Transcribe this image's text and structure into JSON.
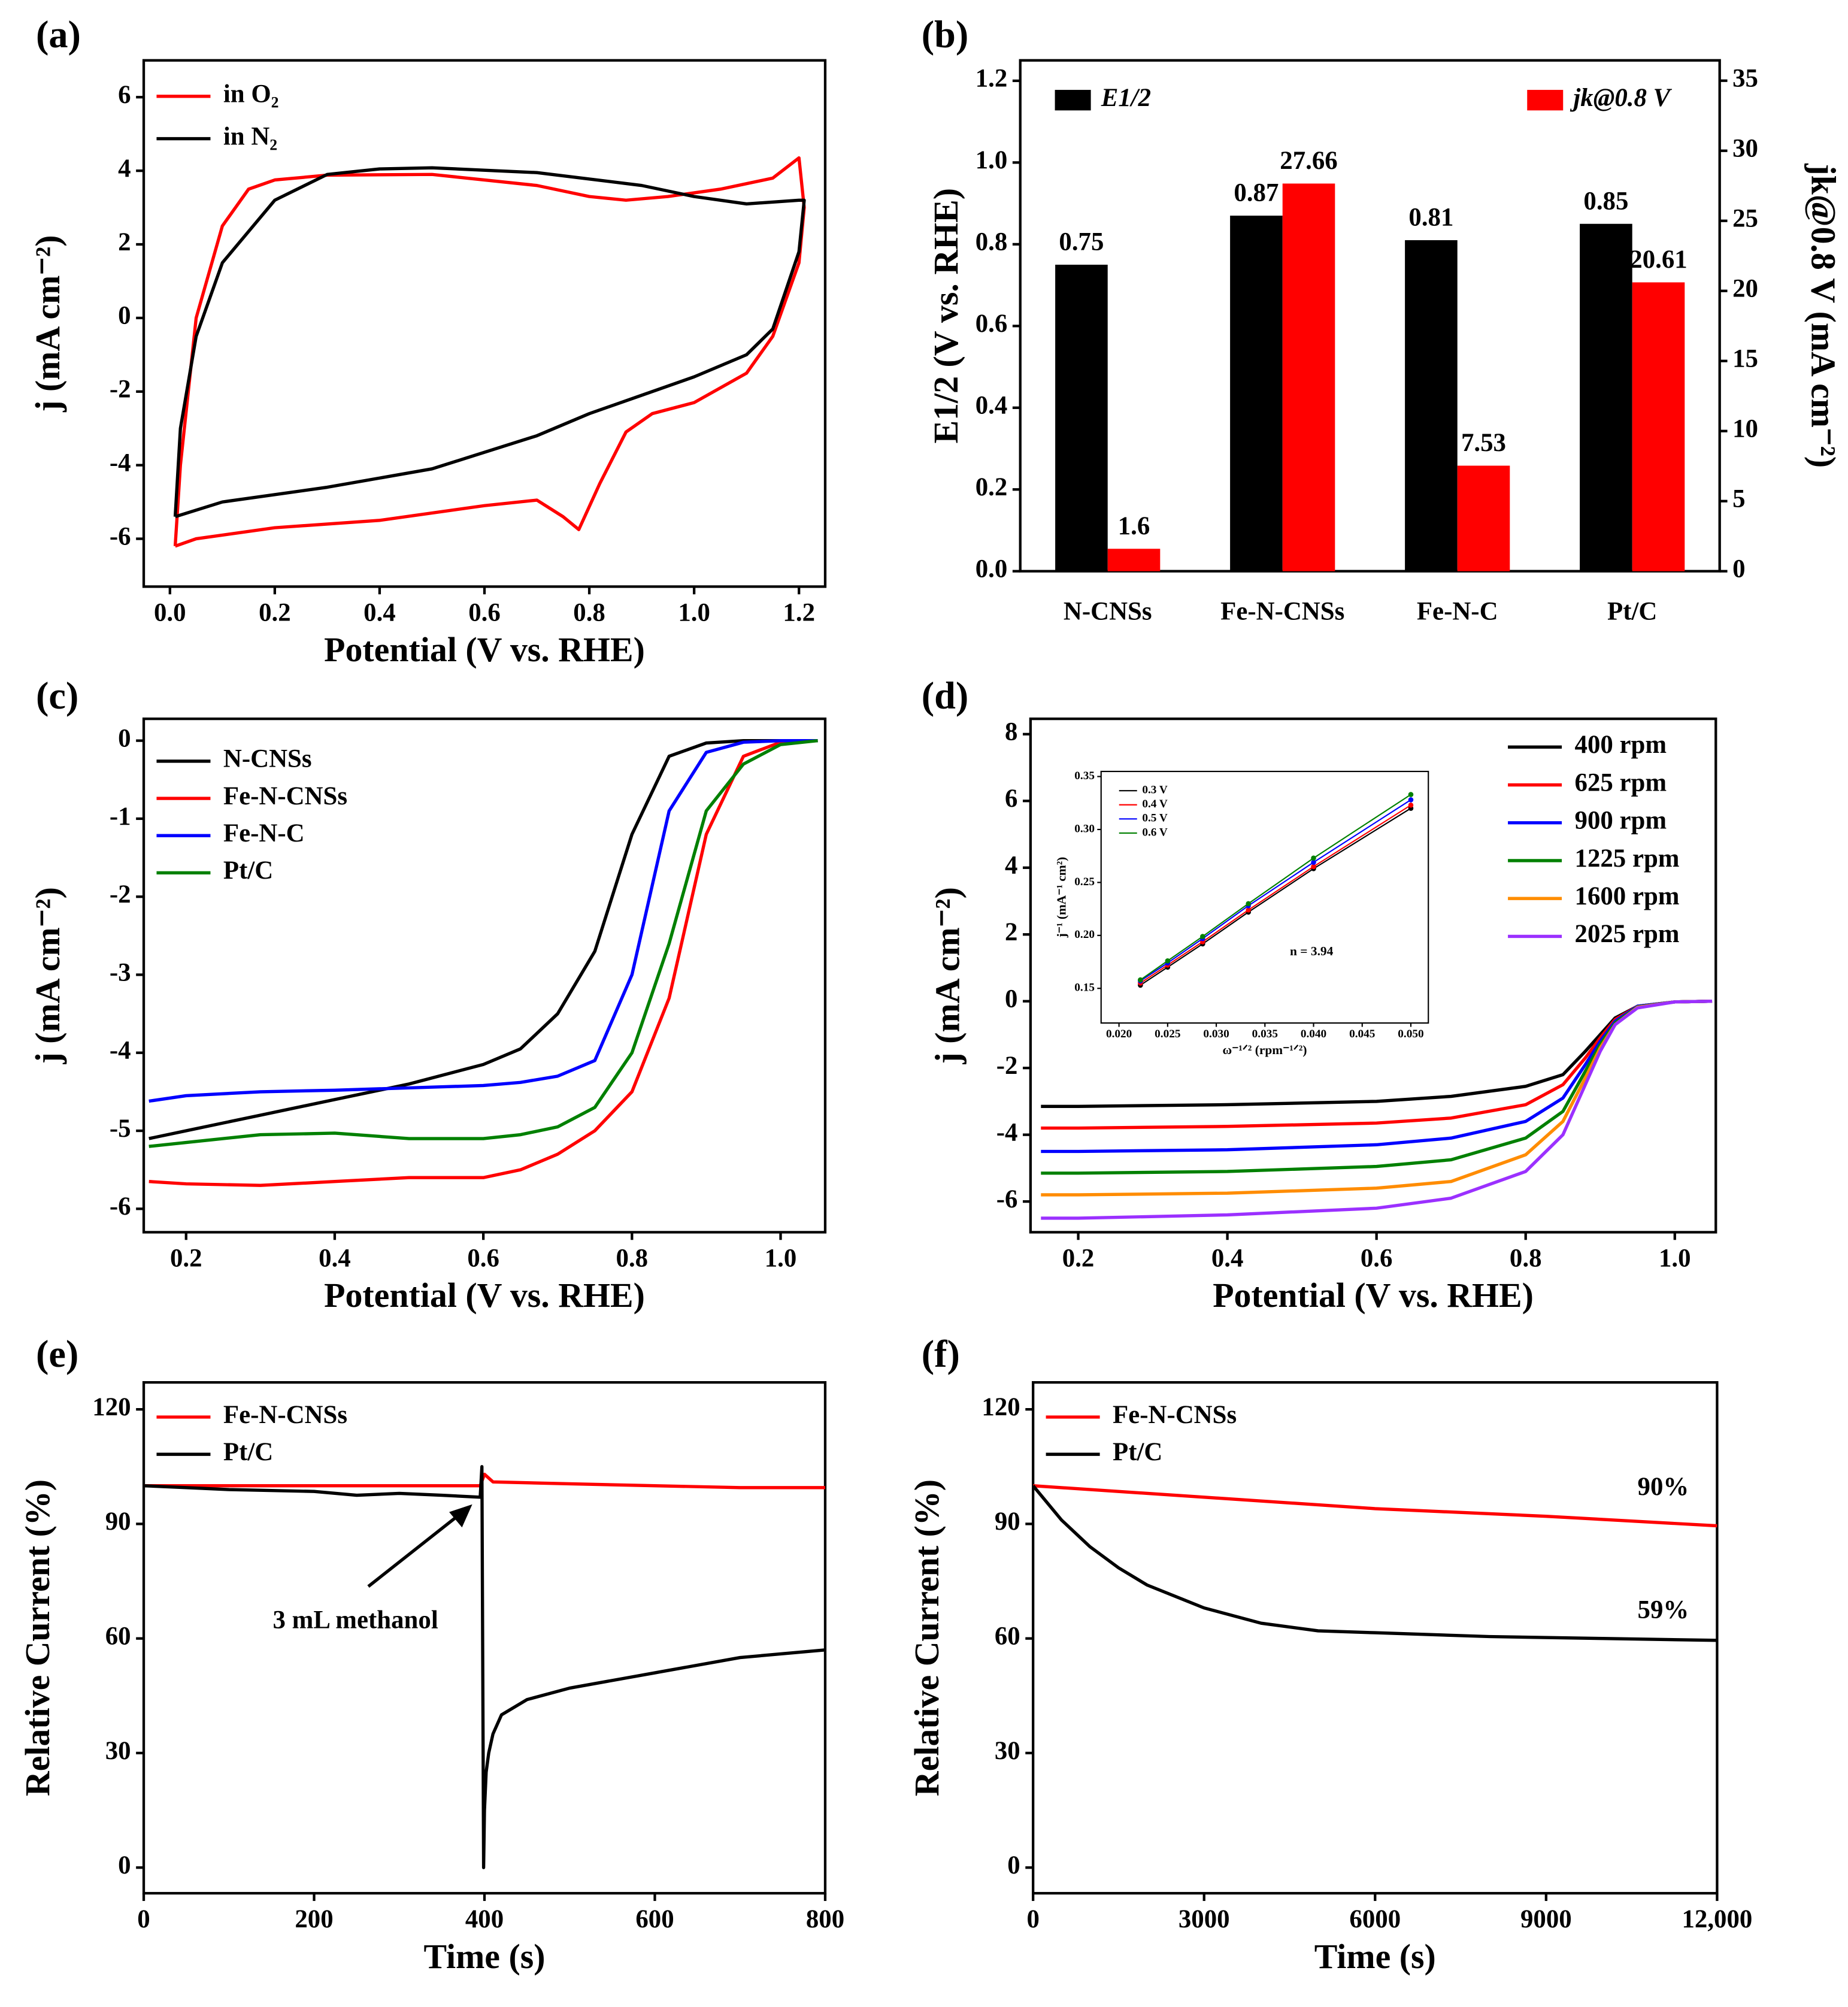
{
  "chart_data": [
    {
      "type": "line",
      "label": "(a)",
      "xlabel": "Potential (V vs. RHE)",
      "ylabel": "j (mA cm⁻²)",
      "xlim": [
        -0.05,
        1.25
      ],
      "ylim": [
        -7.3,
        7.0
      ],
      "xticks": [
        {
          "value": 0,
          "label": "0.0"
        },
        0.2,
        0.4,
        0.6,
        0.8,
        {
          "value": 1,
          "label": "1.0"
        },
        1.2
      ],
      "yticks": [
        -6,
        -4,
        -2,
        0,
        2,
        4,
        6
      ],
      "series": [
        {
          "name": "in O₂",
          "color": "#ff0000",
          "x": [
            0.01,
            0.02,
            0.05,
            0.1,
            0.15,
            0.2,
            0.3,
            0.5,
            0.7,
            0.8,
            0.87,
            0.95,
            1.05,
            1.15,
            1.2,
            1.21,
            1.2,
            1.15,
            1.1,
            1.0,
            0.92,
            0.87,
            0.82,
            0.78,
            0.75,
            0.7,
            0.6,
            0.4,
            0.2,
            0.05,
            0.01
          ],
          "values": [
            -6.2,
            -4,
            0,
            2.5,
            3.5,
            3.75,
            3.88,
            3.9,
            3.6,
            3.3,
            3.2,
            3.3,
            3.5,
            3.8,
            4.35,
            3,
            1.5,
            -0.5,
            -1.5,
            -2.3,
            -2.6,
            -3.1,
            -4.5,
            -5.75,
            -5.4,
            -4.95,
            -5.1,
            -5.5,
            -5.7,
            -6.0,
            -6.2
          ]
        },
        {
          "name": "in N₂",
          "color": "#000000",
          "x": [
            0.01,
            0.02,
            0.05,
            0.1,
            0.2,
            0.3,
            0.4,
            0.5,
            0.7,
            0.9,
            1.0,
            1.1,
            1.2,
            1.21,
            1.2,
            1.15,
            1.1,
            1.0,
            0.9,
            0.8,
            0.7,
            0.5,
            0.3,
            0.1,
            0.01
          ],
          "values": [
            -5.4,
            -3,
            -0.5,
            1.5,
            3.2,
            3.9,
            4.05,
            4.08,
            3.95,
            3.6,
            3.3,
            3.1,
            3.2,
            3.2,
            1.8,
            -0.3,
            -1.0,
            -1.6,
            -2.1,
            -2.6,
            -3.2,
            -4.1,
            -4.6,
            -5.0,
            -5.4
          ]
        }
      ]
    },
    {
      "type": "bar",
      "label": "(b)",
      "ylabel": "E1/2 (V vs. RHE)",
      "y2label": "jk@0.8 V (mA cm⁻²)",
      "categories": [
        "N-CNSs",
        "Fe-N-CNSs",
        "Fe-N-C",
        "Pt/C"
      ],
      "ylim": [
        0,
        1.25
      ],
      "y2lim": [
        0,
        36.45
      ],
      "yticks": [
        {
          "value": 0,
          "label": "0.0"
        },
        0.2,
        0.4,
        0.6,
        0.8,
        {
          "value": 1,
          "label": "1.0"
        },
        1.2
      ],
      "y2ticks": [
        0,
        5,
        10,
        15,
        20,
        25,
        30,
        35
      ],
      "series": [
        {
          "name": "E1/2",
          "color": "#000000",
          "values": [
            0.75,
            0.87,
            0.81,
            0.85
          ]
        },
        {
          "name": "jk@0.8 V",
          "color": "#ff0000",
          "axis": "y2",
          "values": [
            1.6,
            27.66,
            7.53,
            20.61
          ]
        }
      ]
    },
    {
      "type": "line",
      "label": "(c)",
      "xlabel": "Potential (V vs. RHE)",
      "ylabel": "j (mA cm⁻²)",
      "xlim": [
        0.143,
        1.06
      ],
      "ylim": [
        -6.3,
        0.28
      ],
      "xticks": [
        0.2,
        0.4,
        0.6,
        0.8,
        {
          "value": 1,
          "label": "1.0"
        }
      ],
      "yticks": [
        -6,
        -5,
        -4,
        -3,
        -2,
        -1,
        0
      ],
      "x": [
        0.15,
        0.2,
        0.3,
        0.4,
        0.5,
        0.6,
        0.65,
        0.7,
        0.75,
        0.8,
        0.85,
        0.9,
        0.95,
        1.0,
        1.05
      ],
      "series": [
        {
          "name": "N-CNSs",
          "color": "#000000",
          "values": [
            -5.1,
            -5.0,
            -4.8,
            -4.6,
            -4.4,
            -4.15,
            -3.95,
            -3.5,
            -2.7,
            -1.2,
            -0.2,
            -0.03,
            0,
            0,
            0
          ]
        },
        {
          "name": "Fe-N-CNSs",
          "color": "#ff0000",
          "values": [
            -5.65,
            -5.68,
            -5.7,
            -5.65,
            -5.6,
            -5.6,
            -5.5,
            -5.3,
            -5.0,
            -4.5,
            -3.3,
            -1.2,
            -0.2,
            -0.02,
            0
          ]
        },
        {
          "name": "Fe-N-C",
          "color": "#0000ff",
          "values": [
            -4.62,
            -4.55,
            -4.5,
            -4.48,
            -4.45,
            -4.42,
            -4.38,
            -4.3,
            -4.1,
            -3.0,
            -0.9,
            -0.15,
            -0.02,
            0,
            0
          ]
        },
        {
          "name": "Pt/C",
          "color": "#008000",
          "values": [
            -5.2,
            -5.15,
            -5.05,
            -5.03,
            -5.1,
            -5.1,
            -5.05,
            -4.95,
            -4.7,
            -4.0,
            -2.6,
            -0.9,
            -0.3,
            -0.05,
            0
          ]
        }
      ]
    },
    {
      "type": "line",
      "label": "(d)",
      "xlabel": "Potential (V vs. RHE)",
      "ylabel": "j (mA cm⁻²)",
      "xlim": [
        0.136,
        1.055
      ],
      "ylim": [
        -6.92,
        8.46
      ],
      "xticks": [
        0.2,
        0.4,
        0.6,
        0.8,
        {
          "value": 1,
          "label": "1.0"
        }
      ],
      "yticks": [
        -6,
        -4,
        -2,
        0,
        2,
        4,
        6,
        8
      ],
      "x": [
        0.15,
        0.2,
        0.4,
        0.6,
        0.7,
        0.8,
        0.85,
        0.88,
        0.9,
        0.92,
        0.95,
        1.0,
        1.05
      ],
      "series": [
        {
          "name": "400 rpm",
          "color": "#000000",
          "values": [
            -3.15,
            -3.15,
            -3.1,
            -3.0,
            -2.85,
            -2.55,
            -2.2,
            -1.5,
            -1.0,
            -0.5,
            -0.15,
            -0.02,
            0
          ]
        },
        {
          "name": "625 rpm",
          "color": "#ff0000",
          "values": [
            -3.8,
            -3.8,
            -3.75,
            -3.65,
            -3.5,
            -3.1,
            -2.5,
            -1.7,
            -1.1,
            -0.55,
            -0.15,
            -0.02,
            0
          ]
        },
        {
          "name": "900 rpm",
          "color": "#0000ff",
          "values": [
            -4.5,
            -4.5,
            -4.45,
            -4.3,
            -4.1,
            -3.6,
            -2.9,
            -1.9,
            -1.2,
            -0.6,
            -0.15,
            -0.02,
            0
          ]
        },
        {
          "name": "1225 rpm",
          "color": "#008000",
          "values": [
            -5.15,
            -5.15,
            -5.1,
            -4.95,
            -4.75,
            -4.1,
            -3.3,
            -2.1,
            -1.3,
            -0.65,
            -0.17,
            -0.02,
            0
          ]
        },
        {
          "name": "1600 rpm",
          "color": "#ff8c00",
          "values": [
            -5.8,
            -5.8,
            -5.75,
            -5.6,
            -5.4,
            -4.6,
            -3.6,
            -2.3,
            -1.4,
            -0.7,
            -0.18,
            -0.02,
            0
          ]
        },
        {
          "name": "2025 rpm",
          "color": "#9b30ff",
          "values": [
            -6.5,
            -6.5,
            -6.4,
            -6.2,
            -5.9,
            -5.1,
            -4.0,
            -2.5,
            -1.5,
            -0.7,
            -0.2,
            -0.02,
            0
          ]
        }
      ]
    },
    {
      "type": "line",
      "label": "(e)",
      "xlabel": "Time (s)",
      "ylabel": "Relative Current (%)",
      "xlim": [
        0,
        800
      ],
      "ylim": [
        -6.72,
        127.06
      ],
      "xticks": [
        0,
        200,
        400,
        600,
        800
      ],
      "yticks": [
        0,
        30,
        60,
        90,
        120
      ],
      "annotations": [
        "3 mL methanol"
      ],
      "series": [
        {
          "name": "Fe-N-CNSs",
          "color": "#ff0000",
          "x": [
            0,
            100,
            200,
            300,
            395,
            400,
            410,
            500,
            600,
            700,
            800
          ],
          "values": [
            100,
            100,
            100,
            100,
            100,
            103,
            101,
            100.5,
            100,
            99.5,
            99.5
          ]
        },
        {
          "name": "Pt/C",
          "color": "#000000",
          "x": [
            0,
            50,
            100,
            200,
            250,
            300,
            350,
            395,
            397,
            399,
            400,
            402,
            405,
            410,
            420,
            450,
            500,
            600,
            700,
            800
          ],
          "values": [
            100,
            99.5,
            99,
            98.5,
            97.5,
            98,
            97.5,
            97,
            105,
            0,
            15,
            25,
            30,
            35,
            40,
            44,
            47,
            51,
            55,
            57
          ]
        }
      ]
    },
    {
      "type": "line",
      "label": "(f)",
      "xlabel": "Time (s)",
      "ylabel": "Relative Current (%)",
      "xlim": [
        0,
        12000
      ],
      "ylim": [
        -6.72,
        127.06
      ],
      "xticks": [
        0,
        3000,
        6000,
        9000,
        {
          "value": 12000,
          "label": "12,000"
        }
      ],
      "yticks": [
        0,
        30,
        60,
        90,
        120
      ],
      "annotations": [
        "90%",
        "59%"
      ],
      "series": [
        {
          "name": "Fe-N-CNSs",
          "color": "#ff0000",
          "x": [
            0,
            3000,
            6000,
            9000,
            12000
          ],
          "values": [
            100,
            97,
            94,
            92,
            89.5
          ]
        },
        {
          "name": "Pt/C",
          "color": "#000000",
          "x": [
            0,
            500,
            1000,
            1500,
            2000,
            3000,
            4000,
            5000,
            6000,
            8000,
            10000,
            12000
          ],
          "values": [
            100,
            91,
            84,
            78.5,
            74,
            68,
            64,
            62,
            61.5,
            60.5,
            60,
            59.5
          ]
        }
      ]
    },
    {
      "type": "line",
      "markers": true,
      "xlabel": "ω⁻¹ᐟ² (rpm⁻¹ᐟ²)",
      "ylabel": "j⁻¹ (mA⁻¹ cm²)",
      "xlim": [
        0.01816,
        0.0518
      ],
      "ylim": [
        0.1173,
        0.3548
      ],
      "xticks": [
        {
          "value": 0.02,
          "label": "0.020"
        },
        0.025,
        {
          "value": 0.03,
          "label": "0.030"
        },
        0.035,
        {
          "value": 0.04,
          "label": "0.040"
        },
        0.045,
        {
          "value": 0.05,
          "label": "0.050"
        }
      ],
      "yticks": [
        0.15,
        {
          "value": 0.2,
          "label": "0.20"
        },
        0.25,
        {
          "value": 0.3,
          "label": "0.30"
        },
        0.35
      ],
      "annotations": [
        "n = 3.94"
      ],
      "x": [
        0.0222,
        0.025,
        0.0286,
        0.0333,
        0.04,
        0.05
      ],
      "series": [
        {
          "name": "0.3 V",
          "color": "#000000",
          "values": [
            0.153,
            0.17,
            0.192,
            0.222,
            0.263,
            0.32
          ]
        },
        {
          "name": "0.4 V",
          "color": "#ff0000",
          "values": [
            0.155,
            0.172,
            0.194,
            0.224,
            0.265,
            0.323
          ]
        },
        {
          "name": "0.5 V",
          "color": "#0000ff",
          "values": [
            0.157,
            0.174,
            0.197,
            0.228,
            0.269,
            0.328
          ]
        },
        {
          "name": "0.6 V",
          "color": "#008000",
          "values": [
            0.158,
            0.176,
            0.199,
            0.23,
            0.273,
            0.333
          ]
        }
      ]
    }
  ]
}
